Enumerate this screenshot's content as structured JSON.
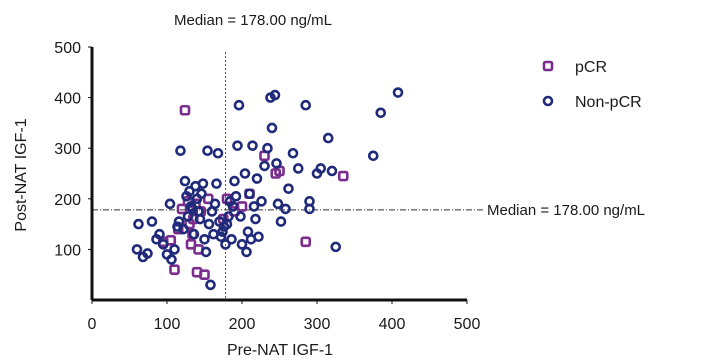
{
  "chart_data": {
    "type": "scatter",
    "xlabel": "Pre-NAT IGF-1",
    "ylabel": "Post-NAT IGF-1",
    "xlim": [
      0,
      500
    ],
    "ylim": [
      0,
      500
    ],
    "xticks": [
      0,
      100,
      200,
      300,
      400,
      500
    ],
    "yticks": [
      100,
      200,
      300,
      400,
      500
    ],
    "grid": false,
    "legend_position": "top-right",
    "median_x": {
      "value": 178,
      "label": "Median = 178.00 ng/mL"
    },
    "median_y": {
      "value": 178,
      "label": "Median = 178.00 ng/mL"
    },
    "series": [
      {
        "name": "pCR",
        "marker": "square",
        "color": "#7b2d8e",
        "points": [
          [
            105,
            118
          ],
          [
            110,
            60
          ],
          [
            115,
            140
          ],
          [
            120,
            180
          ],
          [
            124,
            375
          ],
          [
            128,
            195
          ],
          [
            130,
            150
          ],
          [
            132,
            110
          ],
          [
            134,
            130
          ],
          [
            135,
            160
          ],
          [
            138,
            190
          ],
          [
            140,
            55
          ],
          [
            142,
            100
          ],
          [
            145,
            175
          ],
          [
            150,
            50
          ],
          [
            155,
            200
          ],
          [
            175,
            160
          ],
          [
            180,
            200
          ],
          [
            190,
            175
          ],
          [
            200,
            185
          ],
          [
            210,
            210
          ],
          [
            230,
            285
          ],
          [
            245,
            250
          ],
          [
            250,
            255
          ],
          [
            285,
            115
          ],
          [
            335,
            245
          ],
          [
            95,
            115
          ]
        ]
      },
      {
        "name": "Non-pCR",
        "marker": "circle",
        "color": "#1f2a7a",
        "points": [
          [
            60,
            100
          ],
          [
            62,
            150
          ],
          [
            68,
            85
          ],
          [
            74,
            92
          ],
          [
            80,
            155
          ],
          [
            86,
            120
          ],
          [
            90,
            130
          ],
          [
            95,
            110
          ],
          [
            100,
            90
          ],
          [
            104,
            190
          ],
          [
            106,
            80
          ],
          [
            110,
            100
          ],
          [
            114,
            145
          ],
          [
            116,
            155
          ],
          [
            118,
            295
          ],
          [
            122,
            140
          ],
          [
            124,
            235
          ],
          [
            126,
            205
          ],
          [
            128,
            165
          ],
          [
            130,
            215
          ],
          [
            132,
            185
          ],
          [
            134,
            180
          ],
          [
            136,
            130
          ],
          [
            138,
            225
          ],
          [
            140,
            200
          ],
          [
            142,
            175
          ],
          [
            144,
            160
          ],
          [
            146,
            210
          ],
          [
            148,
            230
          ],
          [
            150,
            120
          ],
          [
            152,
            95
          ],
          [
            154,
            295
          ],
          [
            156,
            150
          ],
          [
            158,
            30
          ],
          [
            160,
            175
          ],
          [
            162,
            130
          ],
          [
            164,
            190
          ],
          [
            166,
            230
          ],
          [
            168,
            290
          ],
          [
            170,
            155
          ],
          [
            172,
            125
          ],
          [
            174,
            135
          ],
          [
            176,
            145
          ],
          [
            178,
            110
          ],
          [
            180,
            150
          ],
          [
            182,
            165
          ],
          [
            184,
            195
          ],
          [
            186,
            120
          ],
          [
            188,
            185
          ],
          [
            190,
            235
          ],
          [
            192,
            205
          ],
          [
            194,
            305
          ],
          [
            196,
            385
          ],
          [
            198,
            165
          ],
          [
            200,
            110
          ],
          [
            204,
            250
          ],
          [
            206,
            95
          ],
          [
            208,
            135
          ],
          [
            210,
            210
          ],
          [
            212,
            120
          ],
          [
            214,
            305
          ],
          [
            216,
            185
          ],
          [
            218,
            160
          ],
          [
            220,
            240
          ],
          [
            222,
            125
          ],
          [
            226,
            195
          ],
          [
            230,
            265
          ],
          [
            234,
            300
          ],
          [
            238,
            400
          ],
          [
            240,
            340
          ],
          [
            244,
            405
          ],
          [
            246,
            270
          ],
          [
            248,
            190
          ],
          [
            252,
            155
          ],
          [
            258,
            180
          ],
          [
            262,
            220
          ],
          [
            268,
            290
          ],
          [
            275,
            260
          ],
          [
            285,
            385
          ],
          [
            290,
            180
          ],
          [
            305,
            260
          ],
          [
            315,
            320
          ],
          [
            320,
            255
          ],
          [
            325,
            105
          ],
          [
            375,
            285
          ],
          [
            385,
            370
          ],
          [
            408,
            410
          ],
          [
            290,
            195
          ],
          [
            300,
            250
          ]
        ]
      }
    ]
  }
}
